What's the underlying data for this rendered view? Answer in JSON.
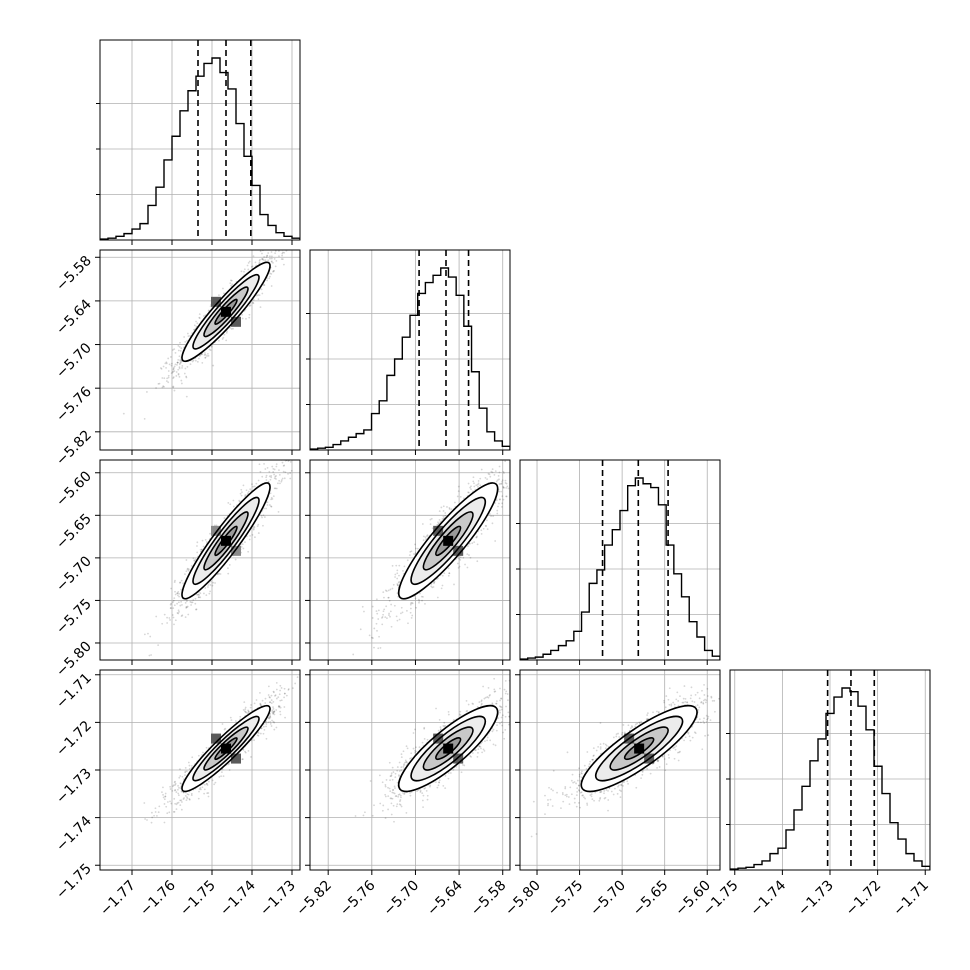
{
  "chart_data": {
    "type": "corner",
    "n_parameters": 4,
    "parameters": [
      {
        "label": "",
        "axis_range": [
          -1.778,
          -1.728
        ],
        "mean": -1.7465,
        "std": 0.0055,
        "quantiles": [
          -1.7535,
          -1.7465,
          -1.7403
        ],
        "ticks": [
          -1.77,
          -1.76,
          -1.75,
          -1.74,
          -1.73
        ],
        "ticklabels": [
          "−1.77",
          "−1.76",
          "−1.75",
          "−1.74",
          "−1.73"
        ],
        "histogram": [
          0.005,
          0.01,
          0.02,
          0.035,
          0.06,
          0.09,
          0.19,
          0.29,
          0.44,
          0.57,
          0.71,
          0.82,
          0.9,
          0.97,
          1.0,
          0.92,
          0.83,
          0.64,
          0.46,
          0.3,
          0.14,
          0.08,
          0.04,
          0.02,
          0.01
        ]
      },
      {
        "label": "",
        "axis_range": [
          -5.845,
          -5.57
        ],
        "mean": -5.655,
        "std": 0.034,
        "quantiles": [
          -5.695,
          -5.658,
          -5.627
        ],
        "ticks": [
          -5.82,
          -5.76,
          -5.7,
          -5.64,
          -5.58
        ],
        "ticklabels": [
          "−5.82",
          "−5.76",
          "−5.70",
          "−5.64",
          "−5.58"
        ],
        "histogram": [
          0.005,
          0.01,
          0.015,
          0.03,
          0.05,
          0.07,
          0.09,
          0.11,
          0.2,
          0.27,
          0.41,
          0.5,
          0.62,
          0.74,
          0.86,
          0.92,
          0.96,
          1.0,
          0.95,
          0.85,
          0.68,
          0.43,
          0.23,
          0.1,
          0.05,
          0.02
        ]
      },
      {
        "label": "",
        "axis_range": [
          -5.82,
          -5.585
        ],
        "mean": -5.68,
        "std": 0.034,
        "quantiles": [
          -5.723,
          -5.681,
          -5.646
        ],
        "ticks": [
          -5.8,
          -5.75,
          -5.7,
          -5.65,
          -5.6
        ],
        "ticklabels": [
          "−5.80",
          "−5.75",
          "−5.70",
          "−5.65",
          "−5.60"
        ],
        "histogram": [
          0.005,
          0.01,
          0.015,
          0.03,
          0.05,
          0.075,
          0.1,
          0.15,
          0.25,
          0.4,
          0.47,
          0.6,
          0.68,
          0.78,
          0.91,
          0.95,
          0.92,
          0.9,
          0.81,
          0.6,
          0.45,
          0.33,
          0.2,
          0.12,
          0.05,
          0.02
        ]
      },
      {
        "label": "",
        "axis_range": [
          -1.751,
          -1.709
        ],
        "mean": -1.7255,
        "std": 0.0045,
        "quantiles": [
          -1.7305,
          -1.7256,
          -1.7207
        ],
        "ticks": [
          -1.75,
          -1.74,
          -1.73,
          -1.72,
          -1.71
        ],
        "ticklabels": [
          "−1.75",
          "−1.74",
          "−1.73",
          "−1.72",
          "−1.71"
        ],
        "histogram": [
          0.005,
          0.01,
          0.015,
          0.03,
          0.05,
          0.09,
          0.12,
          0.22,
          0.33,
          0.46,
          0.6,
          0.72,
          0.86,
          0.95,
          1.0,
          0.98,
          0.9,
          0.77,
          0.57,
          0.42,
          0.26,
          0.17,
          0.09,
          0.05,
          0.02
        ]
      }
    ],
    "correlations": [
      [
        1,
        0.93,
        0.93,
        0.93
      ],
      [
        0.93,
        1,
        0.9,
        0.85
      ],
      [
        0.93,
        0.9,
        1,
        0.85
      ],
      [
        0.93,
        0.85,
        0.85,
        1
      ]
    ],
    "contour_levels_sigma": [
      0.5,
      1.0,
      1.5,
      2.0
    ],
    "quantile_levels": [
      0.16,
      0.5,
      0.84
    ],
    "grid": true,
    "title": "",
    "legend": "none"
  }
}
